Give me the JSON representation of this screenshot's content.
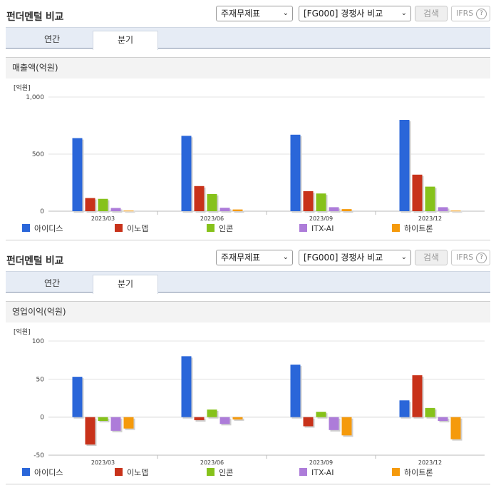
{
  "panels": [
    {
      "title": "펀더멘털 비교",
      "select1": "주재무제표",
      "select2": "[FG000] 경쟁사 비교",
      "search_label": "검색",
      "ifrs_label": "IFRS",
      "tabs": [
        "연간",
        "분기"
      ],
      "active_tab": "분기",
      "metric_title": "매출액(억원)"
    },
    {
      "title": "펀더멘털 비교",
      "select1": "주재무제표",
      "select2": "[FG000] 경쟁사 비교",
      "search_label": "검색",
      "ifrs_label": "IFRS",
      "tabs": [
        "연간",
        "분기"
      ],
      "active_tab": "분기",
      "metric_title": "영업이익(억원)"
    }
  ],
  "chart_data": [
    {
      "type": "bar",
      "unit_label": "[억원]",
      "categories": [
        "2023/03",
        "2023/06",
        "2023/09",
        "2023/12"
      ],
      "yticks": [
        "1,000",
        "500",
        "0"
      ],
      "ylim": [
        0,
        1000
      ],
      "series": [
        {
          "name": "아이디스",
          "color": "#2a66d9",
          "values": [
            640,
            660,
            670,
            800
          ]
        },
        {
          "name": "이노뎁",
          "color": "#c8321a",
          "values": [
            115,
            220,
            175,
            320
          ]
        },
        {
          "name": "인콘",
          "color": "#86c21b",
          "values": [
            108,
            150,
            155,
            215
          ]
        },
        {
          "name": "ITX-AI",
          "color": "#ad7cd9",
          "values": [
            28,
            30,
            35,
            35
          ]
        },
        {
          "name": "하이트론",
          "color": "#f59a0c",
          "values": [
            5,
            15,
            18,
            5
          ]
        }
      ]
    },
    {
      "type": "bar",
      "unit_label": "[억원]",
      "categories": [
        "2023/03",
        "2023/06",
        "2023/09",
        "2023/12"
      ],
      "yticks": [
        "100",
        "50",
        "0",
        "-50"
      ],
      "ylim": [
        -50,
        100
      ],
      "series": [
        {
          "name": "아이디스",
          "color": "#2a66d9",
          "values": [
            53,
            80,
            69,
            22
          ]
        },
        {
          "name": "이노뎁",
          "color": "#c8321a",
          "values": [
            -36,
            -4,
            -12,
            55
          ]
        },
        {
          "name": "인콘",
          "color": "#86c21b",
          "values": [
            -5,
            10,
            7,
            12
          ]
        },
        {
          "name": "ITX-AI",
          "color": "#ad7cd9",
          "values": [
            -18,
            -9,
            -17,
            -5
          ]
        },
        {
          "name": "하이트론",
          "color": "#f59a0c",
          "values": [
            -15,
            -3,
            -24,
            -29
          ]
        }
      ]
    }
  ]
}
